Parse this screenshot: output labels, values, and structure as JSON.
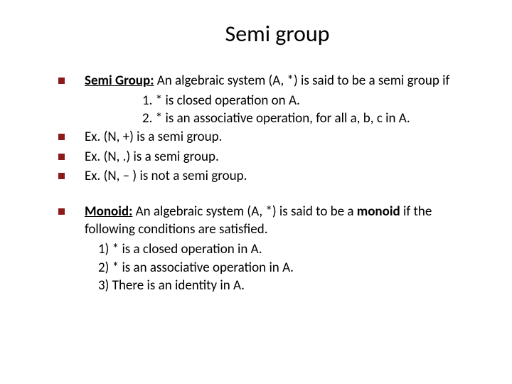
{
  "colors": {
    "bullet": "#8b1a1a",
    "text": "#000000",
    "background": "#ffffff"
  },
  "typography": {
    "title_fontsize": 32,
    "body_fontsize": 19,
    "font_family": "Calibri"
  },
  "title": "Semi group",
  "items": [
    {
      "lead_bold_underline": "Semi Group:",
      "lead_rest": " An algebraic system (A, *) is said to be a semi group if",
      "sublines": [
        "1. * is closed operation on A.",
        "2. * is an associative operation, for all a, b, c in A."
      ]
    },
    {
      "text": "Ex. (N, +) is a semi group."
    },
    {
      "text": "Ex. (N, .) is a semi group."
    },
    {
      "text": "Ex. (N,  –  ) is not a semi group."
    }
  ],
  "items2": [
    {
      "lead_bold_underline": "Monoid:",
      "lead_rest": " An algebraic system (A, *) is said to be a ",
      "lead_bold2": "monoid",
      "lead_rest2": "  if the following conditions are satisfied.",
      "sublines": [
        "1)   *  is a closed operation in A.",
        "2)   *  is an associative operation in A.",
        "3)  There is an identity in A."
      ]
    }
  ]
}
